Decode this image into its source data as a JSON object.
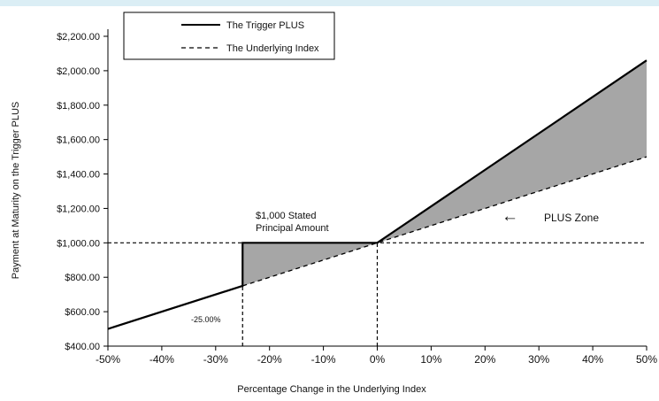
{
  "chart_data": {
    "type": "line",
    "title": "",
    "xlabel": "Percentage Change in the Underlying Index",
    "ylabel": "Payment at Maturity on the Trigger PLUS",
    "xlim": [
      -50,
      50
    ],
    "ylim": [
      400,
      2200
    ],
    "x_ticks": [
      -50,
      -40,
      -30,
      -20,
      -10,
      0,
      10,
      20,
      30,
      40,
      50
    ],
    "x_tick_labels": [
      "-50%",
      "-40%",
      "-30%",
      "-20%",
      "-10%",
      "0%",
      "10%",
      "20%",
      "30%",
      "40%",
      "50%"
    ],
    "y_ticks": [
      400,
      600,
      800,
      1000,
      1200,
      1400,
      1600,
      1800,
      2000,
      2200
    ],
    "y_tick_labels": [
      "$400.00",
      "$600.00",
      "$800.00",
      "$1,000.00",
      "$1,200.00",
      "$1,400.00",
      "$1,600.00",
      "$1,800.00",
      "$2,000.00",
      "$2,200.00"
    ],
    "grid": false,
    "legend_position": "top-left",
    "series": [
      {
        "name": "The Trigger PLUS",
        "style": "solid",
        "color": "#000000",
        "points": [
          [
            -50,
            500
          ],
          [
            -25,
            750
          ],
          [
            -25,
            1000
          ],
          [
            0,
            1000
          ],
          [
            50,
            2060
          ]
        ]
      },
      {
        "name": "The Underlying Index",
        "style": "dashed",
        "color": "#000000",
        "points": [
          [
            -25,
            750
          ],
          [
            50,
            1500
          ]
        ]
      }
    ],
    "reference_lines": [
      {
        "axis": "y",
        "value": 1000,
        "style": "dashed"
      },
      {
        "axis": "x",
        "value": -25,
        "style": "dashed"
      },
      {
        "axis": "x",
        "value": 0,
        "style": "dashed"
      }
    ],
    "shaded_regions": [
      {
        "color": "#a6a6a6",
        "points": [
          [
            -25,
            1000
          ],
          [
            0,
            1000
          ],
          [
            -25,
            750
          ]
        ]
      },
      {
        "color": "#a6a6a6",
        "points": [
          [
            0,
            1000
          ],
          [
            50,
            2060
          ],
          [
            50,
            1500
          ]
        ]
      }
    ],
    "annotations": {
      "stated_amount_line1": "$1,000 Stated",
      "stated_amount_line2": "Principal Amount",
      "plus_zone_arrow": "←",
      "plus_zone_label": "PLUS Zone",
      "trigger_label": "-25.00%"
    }
  }
}
